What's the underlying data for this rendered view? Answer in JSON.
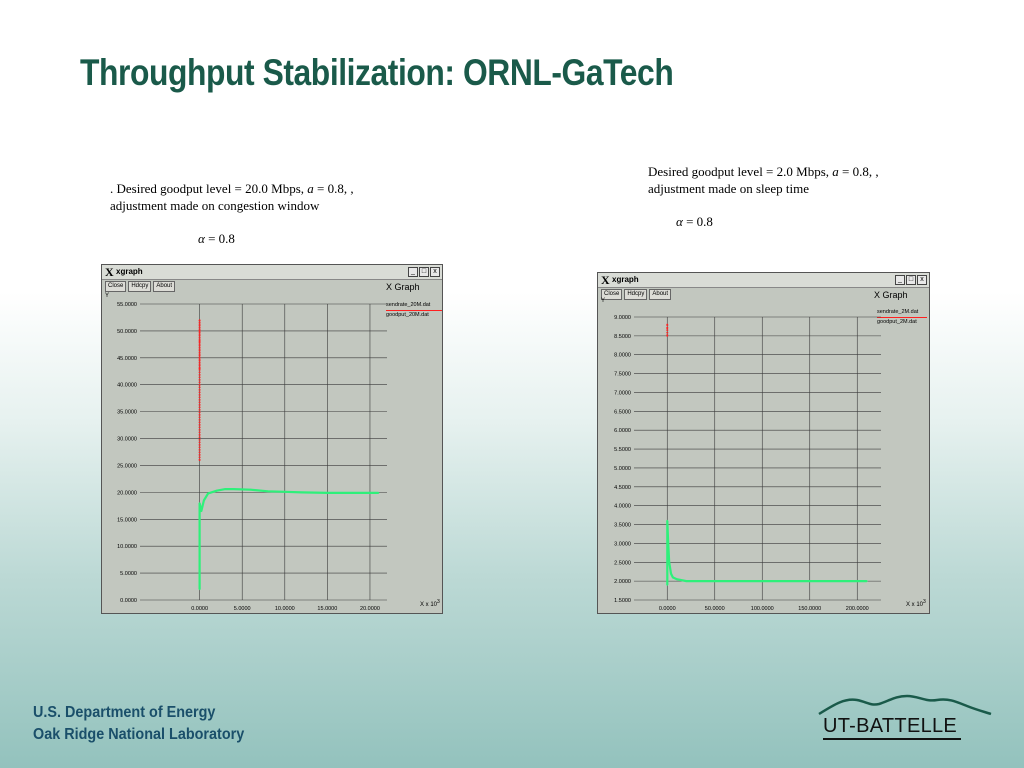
{
  "slide": {
    "title": "Throughput Stabilization: ORNL-GaTech",
    "footer_line1": "U.S. Department of Energy",
    "footer_line2": "Oak Ridge National Laboratory",
    "logo_text": "UT-BATTELLE",
    "colors": {
      "title": "#1a5a4a",
      "footer": "#1a4f6a",
      "sendrate": "#ff2020",
      "goodput": "#2ef07a"
    }
  },
  "left": {
    "caption_line1_pre": ". Desired goodput level = 20.0 Mbps, ",
    "caption_line1_a": "a",
    "caption_line1_post": " = 0.8, ,",
    "caption_line2": "adjustment made on congestion window",
    "alpha_symbol": "α",
    "alpha_text": "= 0.8"
  },
  "right": {
    "caption_line1_pre": "Desired goodput level = 2.0 Mbps, ",
    "caption_line1_a": "a",
    "caption_line1_post": " = 0.8, ,",
    "caption_line2": "adjustment made on sleep time",
    "alpha_symbol": "α",
    "alpha_text": "= 0.8"
  },
  "chart_data": [
    {
      "type": "line",
      "window_title": "xgraph",
      "buttons": [
        "Close",
        "Hdcpy",
        "About"
      ],
      "window_controls": [
        "_",
        "□",
        "x"
      ],
      "graph_label": "X Graph",
      "ylabel": "Y",
      "xlabel": "X x 10^3",
      "xunit_text": "X x 10",
      "xunit_exp": "3",
      "ylim": [
        0,
        55
      ],
      "xlim": [
        -7,
        22
      ],
      "y_ticks": [
        0,
        5,
        10,
        15,
        20,
        25,
        30,
        35,
        40,
        45,
        50,
        55
      ],
      "y_tick_labels": [
        "0.0000",
        "5.0000",
        "10.0000",
        "15.0000",
        "20.0000",
        "25.0000",
        "30.0000",
        "35.0000",
        "40.0000",
        "45.0000",
        "50.0000",
        "55.0000"
      ],
      "x_ticks": [
        0,
        5,
        10,
        15,
        20
      ],
      "x_tick_labels": [
        "0.0000",
        "5.0000",
        "10.0000",
        "15.0000",
        "20.0000"
      ],
      "grid": true,
      "legend_position": "top-right",
      "series": [
        {
          "name": "sendrate_20M.dat",
          "color": "#ff2020",
          "x": [
            0,
            0,
            0,
            0,
            0,
            0
          ],
          "y": [
            43,
            45,
            48,
            50,
            52,
            26
          ]
        },
        {
          "name": "goodput_20M.dat",
          "color": "#2ef07a",
          "x": [
            0,
            0,
            0.2,
            0.5,
            1,
            2,
            3,
            4,
            6,
            8,
            10,
            12,
            15,
            18,
            21
          ],
          "y": [
            2,
            18,
            16.5,
            18.5,
            19.8,
            20.3,
            20.6,
            20.6,
            20.5,
            20.2,
            20.1,
            20.0,
            19.9,
            19.9,
            19.9
          ]
        }
      ]
    },
    {
      "type": "line",
      "window_title": "xgraph",
      "buttons": [
        "Close",
        "Hdcpy",
        "About"
      ],
      "window_controls": [
        "_",
        "□",
        "x"
      ],
      "graph_label": "X Graph",
      "ylabel": "Y",
      "xlabel": "X x 10^3",
      "xunit_text": "X x 10",
      "xunit_exp": "3",
      "ylim": [
        1.5,
        9.0
      ],
      "xlim": [
        -35,
        225
      ],
      "y_ticks": [
        1.5,
        2.0,
        2.5,
        3.0,
        3.5,
        4.0,
        4.5,
        5.0,
        5.5,
        6.0,
        6.5,
        7.0,
        7.5,
        8.0,
        8.5,
        9.0
      ],
      "y_tick_labels": [
        "1.5000",
        "2.0000",
        "2.5000",
        "3.0000",
        "3.5000",
        "4.0000",
        "4.5000",
        "5.0000",
        "5.5000",
        "6.0000",
        "6.5000",
        "7.0000",
        "7.5000",
        "8.0000",
        "8.5000",
        "9.0000"
      ],
      "x_ticks": [
        0,
        50,
        100,
        150,
        200
      ],
      "x_tick_labels": [
        "0.0000",
        "50.0000",
        "100.0000",
        "150.0000",
        "200.0000"
      ],
      "grid": true,
      "legend_position": "top-right",
      "series": [
        {
          "name": "sendrate_2M.dat",
          "color": "#ff2020",
          "x": [
            0,
            0,
            0
          ],
          "y": [
            8.5,
            8.7,
            8.8
          ]
        },
        {
          "name": "goodput_2M.dat",
          "color": "#2ef07a",
          "x": [
            0,
            0,
            1,
            2,
            4,
            6,
            10,
            20,
            40,
            80,
            120,
            160,
            210
          ],
          "y": [
            1.9,
            3.6,
            3.0,
            2.5,
            2.2,
            2.1,
            2.05,
            2.0,
            2.0,
            2.0,
            2.0,
            2.0,
            2.0
          ]
        }
      ]
    }
  ]
}
